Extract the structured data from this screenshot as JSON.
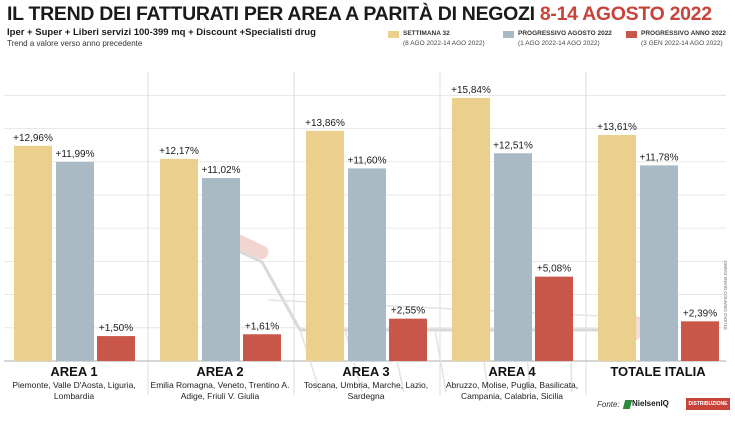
{
  "header": {
    "title_main": "IL TREND DEI FATTURATI PER AREA A PARITÀ DI NEGOZI",
    "title_highlight": "8-14 AGOSTO 2022",
    "subtitle": "Iper + Super + Liberi servizi 100-399 mq + Discount +Specialisti drug",
    "note": "Trend a valore verso anno precedente"
  },
  "legend": [
    {
      "name": "SETTIMANA 32",
      "range": "(8 AGO 2022-14 AGO 2022)",
      "color": "#ebcf8d"
    },
    {
      "name": "PROGRESSIVO AGOSTO 2022",
      "range": "(1 AGO 2022-14 AGO 2022)",
      "color": "#a9bac5"
    },
    {
      "name": "PROGRESSIVO ANNO 2022",
      "range": "(3 GEN 2022-14 AGO 2022)",
      "color": "#c8574a"
    }
  ],
  "colors": {
    "yellow": "#ebcf8d",
    "blue": "#a9bac5",
    "red": "#c8574a",
    "highlight": "#c8433a"
  },
  "chart_data": {
    "type": "bar",
    "categories": [
      "AREA 1",
      "AREA 2",
      "AREA 3",
      "AREA 4",
      "TOTALE ITALIA"
    ],
    "category_regions": [
      "Piemonte, Valle D'Aosta, Liguria, Lombardia",
      "Emilia Romagna, Veneto, Trentino A. Adige, Friuli V. Giulia",
      "Toscana, Umbria, Marche, Lazio, Sardegna",
      "Abruzzo, Molise, Puglia, Basilicata, Campania, Calabria, Sicilia",
      ""
    ],
    "series": [
      {
        "name": "SETTIMANA 32",
        "values": [
          12.96,
          12.17,
          13.86,
          15.84,
          13.61
        ],
        "labels": [
          "+12,96%",
          "+12,17%",
          "+13,86%",
          "+15,84%",
          "+13,61%"
        ]
      },
      {
        "name": "PROGRESSIVO AGOSTO 2022",
        "values": [
          11.99,
          11.02,
          11.6,
          12.51,
          11.78
        ],
        "labels": [
          "+11,99%",
          "+11,02%",
          "+11,60%",
          "+12,51%",
          "+11,78%"
        ]
      },
      {
        "name": "PROGRESSIVO ANNO 2022",
        "values": [
          1.5,
          1.61,
          2.55,
          5.08,
          2.39
        ],
        "labels": [
          "+1,50%",
          "+1,61%",
          "+2,55%",
          "+5,08%",
          "+2,39%"
        ]
      }
    ],
    "ylim": [
      0,
      16.5
    ],
    "grid": true,
    "legend_position": "top-right"
  },
  "footer": {
    "source_label": "Fonte:",
    "logo_nielsen": "NielsenIQ",
    "logo_distribuzione": "DISTRIBUZIONE ITALIANA",
    "credit": "STUDIO GRAFICO DIANA DAIMO"
  }
}
